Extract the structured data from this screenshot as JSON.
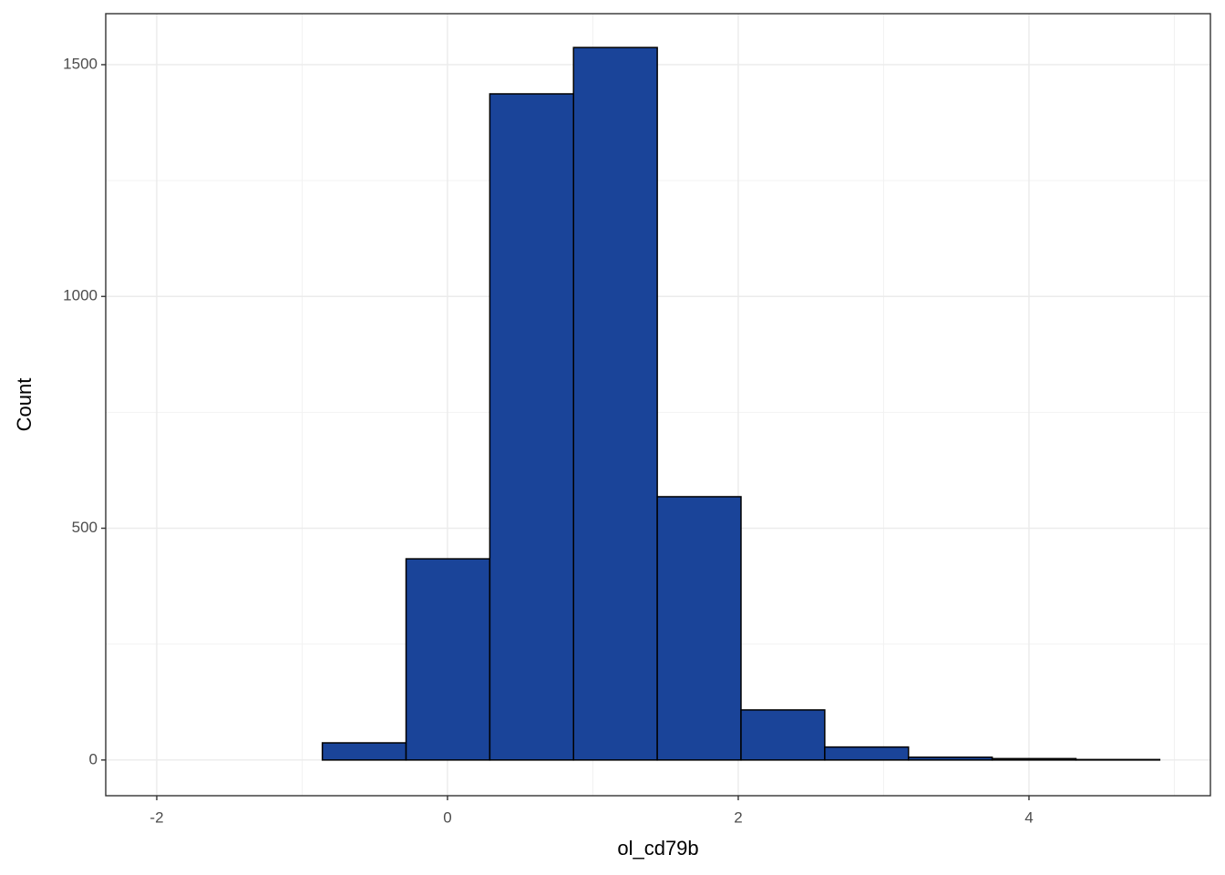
{
  "chart_data": {
    "type": "histogram",
    "x_label": "ol_cd79b",
    "y_label": "Count",
    "bins": [
      -2.013,
      -1.437,
      -0.861,
      -0.285,
      0.291,
      0.867,
      1.443,
      2.019,
      2.595,
      3.171,
      3.747,
      4.323,
      4.899
    ],
    "values": [
      0,
      0,
      37,
      434,
      1437,
      1537,
      568,
      108,
      28,
      6,
      3,
      1
    ],
    "color": "#1a4499",
    "xlim": [
      -2.351,
      5.248
    ],
    "xticks": [
      -2,
      0,
      2,
      4
    ],
    "x_minor_ticks": [
      -1,
      1,
      3,
      5
    ],
    "ylim": [
      -77,
      1610
    ],
    "yticks": [
      0,
      500,
      1000,
      1500
    ],
    "y_minor_ticks": [
      250,
      750,
      1250
    ],
    "grid": true
  }
}
